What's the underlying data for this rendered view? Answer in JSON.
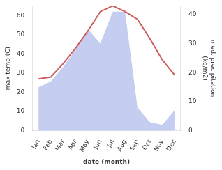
{
  "chart_data": {
    "type": "line",
    "categories": [
      "Jan",
      "Feb",
      "Mar",
      "Apr",
      "May",
      "Jun",
      "Jul",
      "Aug",
      "Sep",
      "Oct",
      "Nov",
      "Dec"
    ],
    "series": [
      {
        "type": "area",
        "axis": "y2",
        "color": "#c5cef0",
        "values": [
          15,
          17,
          22,
          28,
          35,
          30,
          41,
          41,
          8,
          3,
          2,
          7
        ]
      },
      {
        "type": "line",
        "axis": "y",
        "color": "#cd5c5c",
        "values": [
          27,
          28,
          35,
          43,
          52,
          62,
          65,
          62,
          58,
          48,
          37,
          29
        ]
      }
    ],
    "xlabel": "date (month)",
    "ylabel": "max temp (C)",
    "y2label": "med. precipitation\n(kg/m2)",
    "ylim": [
      0,
      65
    ],
    "yticks": [
      0,
      10,
      20,
      30,
      40,
      50,
      60
    ],
    "y2lim": [
      0,
      43
    ],
    "y2ticks": [
      0,
      10,
      20,
      30,
      40
    ],
    "grid": false
  }
}
